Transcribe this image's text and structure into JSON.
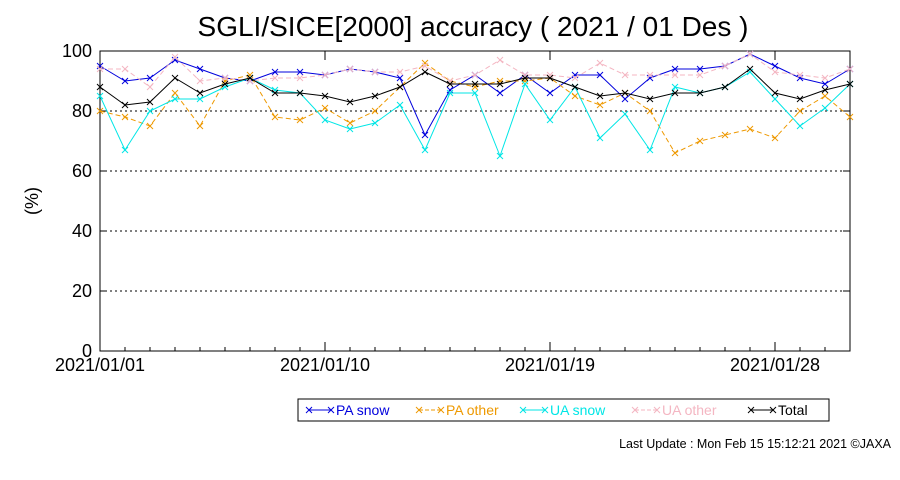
{
  "chart_data": {
    "type": "line",
    "title": "SGLI/SICE[2000] accuracy ( 2021 / 01 Des )",
    "xlabel": "",
    "ylabel": "(%)",
    "ylim": [
      0,
      100
    ],
    "yticks": [
      "0",
      "20",
      "40",
      "60",
      "80",
      "100"
    ],
    "xrange": [
      "2021/01/01",
      "2021/01/31"
    ],
    "xtick_labels": [
      "2021/01/01",
      "2021/01/10",
      "2021/01/19",
      "2021/01/28"
    ],
    "x": [
      "2021/01/01",
      "2021/01/02",
      "2021/01/03",
      "2021/01/04",
      "2021/01/05",
      "2021/01/06",
      "2021/01/07",
      "2021/01/08",
      "2021/01/09",
      "2021/01/10",
      "2021/01/11",
      "2021/01/12",
      "2021/01/13",
      "2021/01/14",
      "2021/01/15",
      "2021/01/16",
      "2021/01/17",
      "2021/01/18",
      "2021/01/19",
      "2021/01/20",
      "2021/01/21",
      "2021/01/22",
      "2021/01/23",
      "2021/01/24",
      "2021/01/25",
      "2021/01/26",
      "2021/01/27",
      "2021/01/28",
      "2021/01/29",
      "2021/01/30",
      "2021/01/31"
    ],
    "grid": "dotted horizontal at 20, 40, 60, 80",
    "legend_position": "bottom",
    "series": [
      {
        "name": "PA snow",
        "color": "#0000dd",
        "dash": "solid",
        "values": [
          95,
          90,
          91,
          97,
          94,
          91,
          90,
          93,
          93,
          92,
          94,
          93,
          91,
          72,
          87,
          92,
          86,
          92,
          86,
          92,
          92,
          84,
          91,
          94,
          94,
          95,
          99,
          95,
          91,
          89,
          94
        ]
      },
      {
        "name": "PA other",
        "color": "#ee9900",
        "dash": "dashed",
        "values": [
          80,
          78,
          75,
          86,
          75,
          90,
          92,
          78,
          77,
          81,
          76,
          80,
          88,
          96,
          90,
          88,
          90,
          90,
          91,
          85,
          82,
          86,
          80,
          66,
          70,
          72,
          74,
          71,
          80,
          85,
          78
        ]
      },
      {
        "name": "UA snow",
        "color": "#00e6e6",
        "dash": "solid",
        "values": [
          85,
          67,
          80,
          84,
          84,
          88,
          91,
          87,
          86,
          77,
          74,
          76,
          82,
          67,
          86,
          86,
          65,
          89,
          77,
          88,
          71,
          79,
          67,
          88,
          86,
          88,
          93,
          84,
          75,
          81,
          89
        ]
      },
      {
        "name": "UA other",
        "color": "#f4b6c2",
        "dash": "dashed",
        "values": [
          94,
          94,
          88,
          98,
          90,
          91,
          90,
          91,
          91,
          92,
          94,
          93,
          93,
          95,
          90,
          92,
          97,
          92,
          92,
          91,
          96,
          92,
          92,
          92,
          92,
          95,
          99,
          93,
          92,
          91,
          94
        ]
      },
      {
        "name": "Total",
        "color": "#000000",
        "dash": "solid",
        "values": [
          88,
          82,
          83,
          91,
          86,
          89,
          91,
          86,
          86,
          85,
          83,
          85,
          88,
          93,
          89,
          89,
          89,
          91,
          91,
          88,
          85,
          86,
          84,
          86,
          86,
          88,
          94,
          86,
          84,
          87,
          89
        ]
      }
    ]
  },
  "footer": "Last Update : Mon Feb 15 15:12:21 2021  ©JAXA"
}
